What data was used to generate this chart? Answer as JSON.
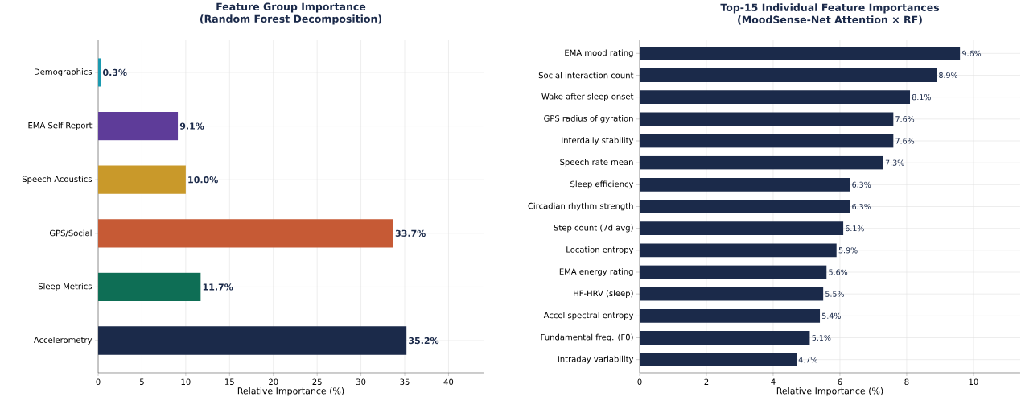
{
  "chart_data": [
    {
      "type": "bar",
      "orientation": "horizontal",
      "title": "Feature Group Importance",
      "subtitle": "(Random Forest Decomposition)",
      "xlabel": "Relative Importance (%)",
      "categories": [
        "Demographics",
        "EMA Self-Report",
        "Speech Acoustics",
        "GPS/Social",
        "Sleep Metrics",
        "Accelerometry"
      ],
      "values": [
        0.3,
        9.1,
        10.0,
        33.7,
        11.7,
        35.2
      ],
      "colors": [
        "#1a9ab0",
        "#5e3c99",
        "#c9992a",
        "#c65a35",
        "#0e6e55",
        "#1b2a4a"
      ],
      "value_labels": [
        "0.3%",
        "9.1%",
        "10.0%",
        "33.7%",
        "11.7%",
        "35.2%"
      ],
      "xlim": [
        0,
        44
      ],
      "xticks": [
        0,
        5,
        10,
        15,
        20,
        25,
        30,
        35,
        40
      ],
      "grid": true
    },
    {
      "type": "bar",
      "orientation": "horizontal",
      "title": "Top-15 Individual Feature Importances",
      "subtitle": "(MoodSense-Net Attention × RF)",
      "xlabel": "Relative Importance (%)",
      "categories": [
        "EMA mood rating",
        "Social interaction count",
        "Wake after sleep onset",
        "GPS radius of gyration",
        "Interdaily stability",
        "Speech rate mean",
        "Sleep efficiency",
        "Circadian rhythm strength",
        "Step count (7d avg)",
        "Location entropy",
        "EMA energy rating",
        "HF-HRV (sleep)",
        "Accel spectral entropy",
        "Fundamental freq. (F0)",
        "Intraday variability"
      ],
      "values": [
        9.6,
        8.9,
        8.1,
        7.6,
        7.6,
        7.3,
        6.3,
        6.3,
        6.1,
        5.9,
        5.6,
        5.5,
        5.4,
        5.1,
        4.7
      ],
      "color": "#1b2a4a",
      "value_labels": [
        "9.6%",
        "8.9%",
        "8.1%",
        "7.6%",
        "7.6%",
        "7.3%",
        "6.3%",
        "6.3%",
        "6.1%",
        "5.9%",
        "5.6%",
        "5.5%",
        "5.4%",
        "5.1%",
        "4.7%"
      ],
      "xlim": [
        0,
        11.4
      ],
      "xticks": [
        0,
        2,
        4,
        6,
        8,
        10
      ],
      "grid": true
    }
  ]
}
